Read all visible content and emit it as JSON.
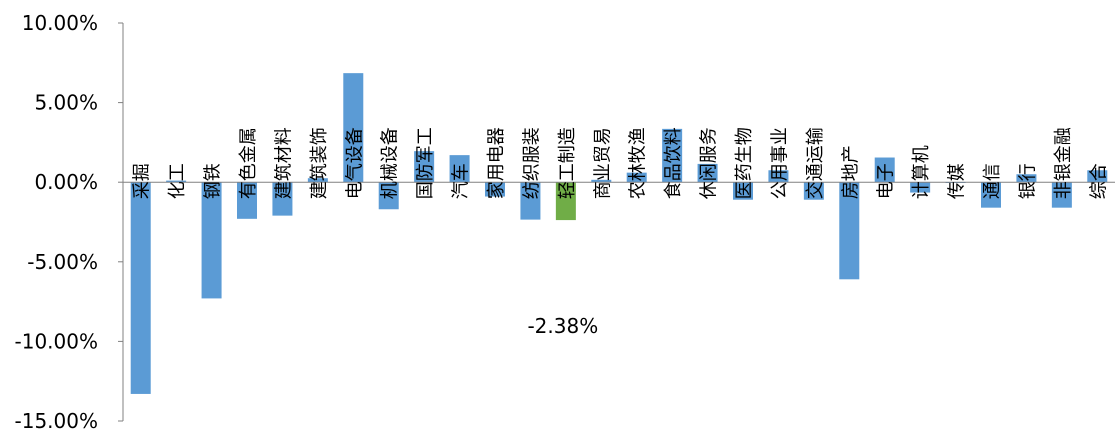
{
  "chart_data": {
    "type": "bar",
    "title": "",
    "xlabel": "",
    "ylabel": "",
    "ylim": [
      -15,
      10
    ],
    "yticks": [
      10,
      5,
      0,
      -5,
      -10,
      -15
    ],
    "yticklabels": [
      "10.00%",
      "5.00%",
      "0.00%",
      "-5.00%",
      "-10.00%",
      "-15.00%"
    ],
    "categories": [
      "采掘",
      "化工",
      "钢铁",
      "有色金属",
      "建筑材料",
      "建筑装饰",
      "电气设备",
      "机械设备",
      "国防军工",
      "汽车",
      "家用电器",
      "纺织服装",
      "轻工制造",
      "商业贸易",
      "农林牧渔",
      "食品饮料",
      "休闲服务",
      "医药生物",
      "公用事业",
      "交通运输",
      "房地产",
      "电子",
      "计算机",
      "传媒",
      "通信",
      "银行",
      "非银金融",
      "综合"
    ],
    "values": [
      -13.3,
      0.1,
      -7.3,
      -2.3,
      -2.1,
      0.25,
      6.85,
      -1.7,
      1.95,
      1.7,
      -0.9,
      -2.35,
      -2.38,
      0.15,
      0.6,
      3.35,
      1.15,
      -1.1,
      0.75,
      -1.1,
      -6.1,
      1.55,
      -0.65,
      -0.05,
      -1.6,
      0.5,
      -1.6,
      0.75
    ],
    "highlight_index": 12,
    "data_label": "-2.38%",
    "colors": {
      "bar": "#5B9BD5",
      "highlight": "#70AD47",
      "axis": "#808080"
    },
    "grid": false,
    "legend": "none"
  }
}
